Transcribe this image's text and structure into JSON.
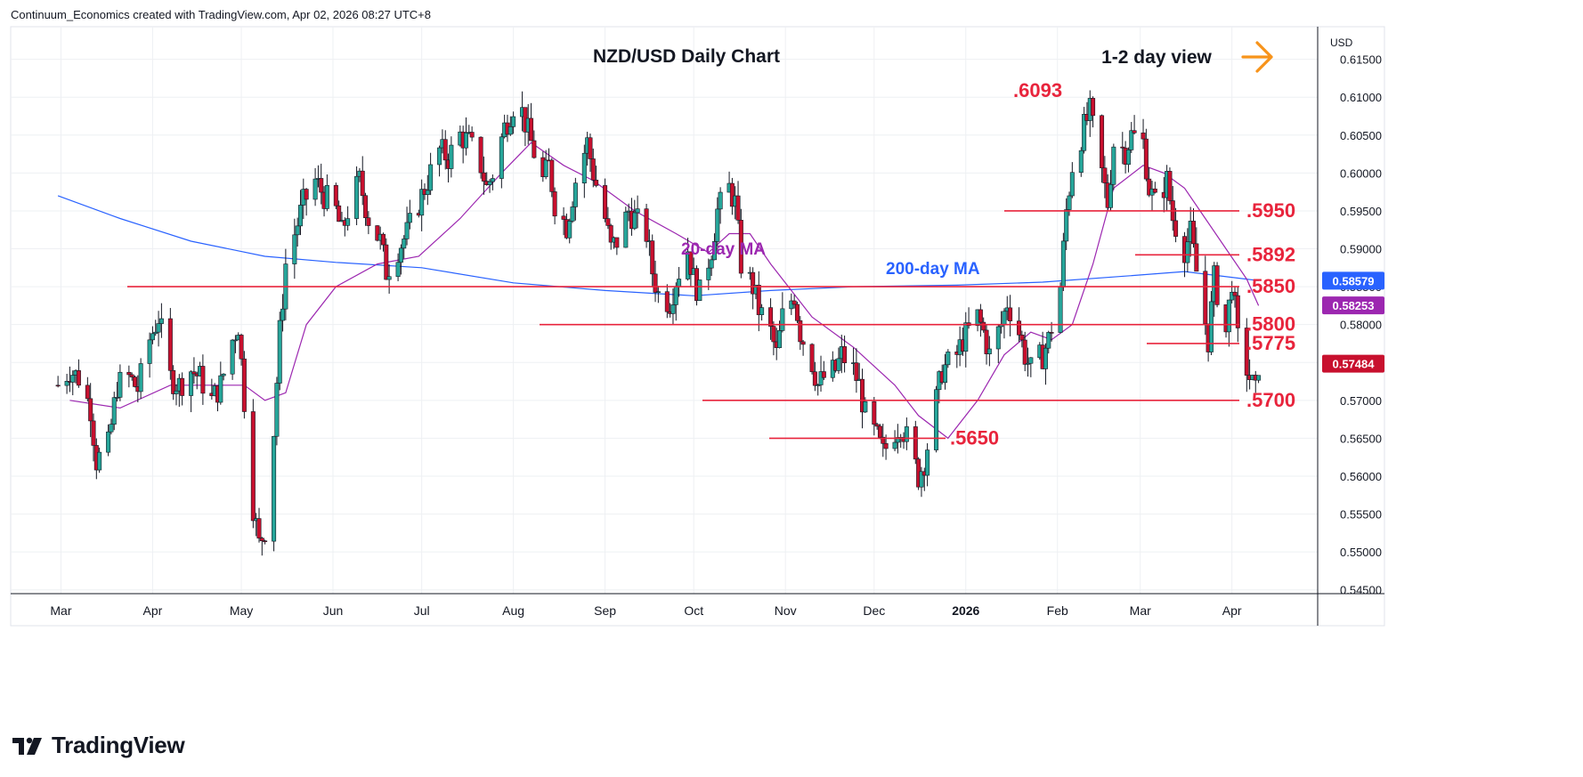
{
  "header": {
    "credit": "Continuum_Economics created with TradingView.com, Apr 02, 2026 08:27 UTC+8"
  },
  "brand": {
    "name": "TradingView"
  },
  "colors": {
    "up": "#26a69a",
    "down": "#c8102e",
    "ma20": "#9c27b0",
    "ma200": "#2962ff",
    "level": "#e8243c",
    "arrow": "#f7931a",
    "grid": "#eef0f3",
    "axis_text": "#131722"
  },
  "chart_data": {
    "type": "candlestick",
    "title": "NZD/USD Daily Chart",
    "view_label": "1-2 day view",
    "view_icon": "arrow-right-icon",
    "currency": "USD",
    "ylim": [
      0.5445,
      0.6193
    ],
    "y_ticks": [
      "0.61500",
      "0.61000",
      "0.60500",
      "0.60000",
      "0.59500",
      "0.59000",
      "0.58500",
      "0.58000",
      "0.57500",
      "0.57000",
      "0.56500",
      "0.56000",
      "0.55500",
      "0.55000",
      "0.54500"
    ],
    "x_ticks": [
      "Mar",
      "Apr",
      "May",
      "Jun",
      "Jul",
      "Aug",
      "Sep",
      "Oct",
      "Nov",
      "Dec",
      "2026",
      "Feb",
      "Mar",
      "Apr"
    ],
    "price_badges": [
      {
        "label": "0.58579",
        "value": 0.58579,
        "color": "#2962ff"
      },
      {
        "label": "0.58253",
        "value": 0.58253,
        "color": "#9c27b0"
      },
      {
        "label": "0.57484",
        "value": 0.57484,
        "color": "#c8102e"
      }
    ],
    "ma_labels": {
      "ma20": "20-day MA",
      "ma200": "200-day MA"
    },
    "levels": [
      {
        "label": ".6093",
        "value": 0.6093,
        "line": false
      },
      {
        "label": ".5950",
        "value": 0.595,
        "line": true
      },
      {
        "label": ".5892",
        "value": 0.5892,
        "line": true
      },
      {
        "label": ".5850",
        "value": 0.585,
        "line": true
      },
      {
        "label": ".5800",
        "value": 0.58,
        "line": true
      },
      {
        "label": ".5775",
        "value": 0.5775,
        "line": true
      },
      {
        "label": ".5700",
        "value": 0.57,
        "line": true
      },
      {
        "label": ".5650",
        "value": 0.565,
        "line": true
      }
    ],
    "close_path": [
      [
        "2025-02-28",
        0.572
      ],
      [
        "2025-03-04",
        0.574
      ],
      [
        "2025-03-07",
        0.573
      ],
      [
        "2025-03-11",
        0.569
      ],
      [
        "2025-03-13",
        0.562
      ],
      [
        "2025-03-17",
        0.564
      ],
      [
        "2025-03-20",
        0.572
      ],
      [
        "2025-03-24",
        0.573
      ],
      [
        "2025-03-27",
        0.5715
      ],
      [
        "2025-03-31",
        0.578
      ],
      [
        "2025-04-03",
        0.581
      ],
      [
        "2025-04-07",
        0.573
      ],
      [
        "2025-04-10",
        0.572
      ],
      [
        "2025-04-14",
        0.574
      ],
      [
        "2025-04-17",
        0.573
      ],
      [
        "2025-04-21",
        0.57
      ],
      [
        "2025-04-24",
        0.572
      ],
      [
        "2025-04-28",
        0.578
      ],
      [
        "2025-04-30",
        0.58
      ],
      [
        "2025-05-02",
        0.57
      ],
      [
        "2025-05-05",
        0.556
      ],
      [
        "2025-05-07",
        0.551
      ],
      [
        "2025-05-09",
        0.553
      ],
      [
        "2025-05-12",
        0.566
      ],
      [
        "2025-05-14",
        0.579
      ],
      [
        "2025-05-16",
        0.588
      ],
      [
        "2025-05-19",
        0.592
      ],
      [
        "2025-05-22",
        0.596
      ],
      [
        "2025-05-26",
        0.599
      ],
      [
        "2025-05-29",
        0.597
      ],
      [
        "2025-06-02",
        0.595
      ],
      [
        "2025-06-04",
        0.592
      ],
      [
        "2025-06-06",
        0.595
      ],
      [
        "2025-06-10",
        0.599
      ],
      [
        "2025-06-13",
        0.594
      ],
      [
        "2025-06-17",
        0.591
      ],
      [
        "2025-06-19",
        0.587
      ],
      [
        "2025-06-23",
        0.59
      ],
      [
        "2025-06-26",
        0.592
      ],
      [
        "2025-06-30",
        0.596
      ],
      [
        "2025-07-03",
        0.599
      ],
      [
        "2025-07-07",
        0.603
      ],
      [
        "2025-07-10",
        0.602
      ],
      [
        "2025-07-14",
        0.605
      ],
      [
        "2025-07-17",
        0.604
      ],
      [
        "2025-07-21",
        0.601
      ],
      [
        "2025-07-23",
        0.598
      ],
      [
        "2025-07-25",
        0.6
      ],
      [
        "2025-07-29",
        0.606
      ],
      [
        "2025-08-01",
        0.609
      ],
      [
        "2025-08-04",
        0.608
      ],
      [
        "2025-08-07",
        0.604
      ],
      [
        "2025-08-11",
        0.599
      ],
      [
        "2025-08-13",
        0.601
      ],
      [
        "2025-08-15",
        0.596
      ],
      [
        "2025-08-19",
        0.593
      ],
      [
        "2025-08-22",
        0.599
      ],
      [
        "2025-08-26",
        0.604
      ],
      [
        "2025-08-28",
        0.6
      ],
      [
        "2025-09-01",
        0.594
      ],
      [
        "2025-09-03",
        0.59
      ],
      [
        "2025-09-05",
        0.591
      ],
      [
        "2025-09-09",
        0.595
      ],
      [
        "2025-09-11",
        0.594
      ],
      [
        "2025-09-15",
        0.592
      ],
      [
        "2025-09-17",
        0.587
      ],
      [
        "2025-09-19",
        0.584
      ],
      [
        "2025-09-23",
        0.583
      ],
      [
        "2025-09-25",
        0.586
      ],
      [
        "2025-09-29",
        0.59
      ],
      [
        "2025-10-01",
        0.586
      ],
      [
        "2025-10-03",
        0.584
      ],
      [
        "2025-10-07",
        0.59
      ],
      [
        "2025-10-09",
        0.595
      ],
      [
        "2025-10-13",
        0.598
      ],
      [
        "2025-10-15",
        0.596
      ],
      [
        "2025-10-17",
        0.588
      ],
      [
        "2025-10-21",
        0.585
      ],
      [
        "2025-10-23",
        0.582
      ],
      [
        "2025-10-27",
        0.579
      ],
      [
        "2025-10-29",
        0.576
      ],
      [
        "2025-10-31",
        0.581
      ],
      [
        "2025-11-04",
        0.584
      ],
      [
        "2025-11-06",
        0.579
      ],
      [
        "2025-11-10",
        0.575
      ],
      [
        "2025-11-12",
        0.572
      ],
      [
        "2025-11-14",
        0.573
      ],
      [
        "2025-11-18",
        0.574
      ],
      [
        "2025-11-20",
        0.576
      ],
      [
        "2025-11-24",
        0.574
      ],
      [
        "2025-11-26",
        0.572
      ],
      [
        "2025-11-28",
        0.568
      ],
      [
        "2025-12-02",
        0.565
      ],
      [
        "2025-12-04",
        0.563
      ],
      [
        "2025-12-08",
        0.566
      ],
      [
        "2025-12-10",
        0.567
      ],
      [
        "2025-12-12",
        0.565
      ],
      [
        "2025-12-16",
        0.56
      ],
      [
        "2025-12-18",
        0.562
      ],
      [
        "2025-12-22",
        0.57
      ],
      [
        "2025-12-24",
        0.574
      ],
      [
        "2025-12-29",
        0.576
      ],
      [
        "2025-12-31",
        0.578
      ],
      [
        "2026-01-05",
        0.581
      ],
      [
        "2026-01-07",
        0.579
      ],
      [
        "2026-01-09",
        0.576
      ],
      [
        "2026-01-13",
        0.58
      ],
      [
        "2026-01-15",
        0.583
      ],
      [
        "2026-01-19",
        0.579
      ],
      [
        "2026-01-21",
        0.576
      ],
      [
        "2026-01-23",
        0.574
      ],
      [
        "2026-01-27",
        0.576
      ],
      [
        "2026-01-29",
        0.578
      ],
      [
        "2026-02-02",
        0.585
      ],
      [
        "2026-02-04",
        0.595
      ],
      [
        "2026-02-06",
        0.601
      ],
      [
        "2026-02-10",
        0.606
      ],
      [
        "2026-02-12",
        0.608
      ],
      [
        "2026-02-16",
        0.6
      ],
      [
        "2026-02-18",
        0.596
      ],
      [
        "2026-02-20",
        0.604
      ],
      [
        "2026-02-24",
        0.603
      ],
      [
        "2026-02-26",
        0.605
      ],
      [
        "2026-03-02",
        0.604
      ],
      [
        "2026-03-04",
        0.598
      ],
      [
        "2026-03-06",
        0.596
      ],
      [
        "2026-03-10",
        0.599
      ],
      [
        "2026-03-12",
        0.594
      ],
      [
        "2026-03-16",
        0.59
      ],
      [
        "2026-03-18",
        0.592
      ],
      [
        "2026-03-20",
        0.587
      ],
      [
        "2026-03-24",
        0.578
      ],
      [
        "2026-03-26",
        0.586
      ],
      [
        "2026-03-30",
        0.579
      ],
      [
        "2026-04-01",
        0.586
      ],
      [
        "2026-04-03",
        0.578
      ],
      [
        "2026-04-07",
        0.573
      ],
      [
        "2026-04-09",
        0.571
      ],
      [
        "2026-04-10",
        0.5748
      ]
    ],
    "ma20_path": [
      [
        "2025-03-04",
        0.57
      ],
      [
        "2025-03-21",
        0.569
      ],
      [
        "2025-04-07",
        0.572
      ],
      [
        "2025-05-02",
        0.572
      ],
      [
        "2025-05-09",
        0.57
      ],
      [
        "2025-05-16",
        0.571
      ],
      [
        "2025-05-23",
        0.58
      ],
      [
        "2025-06-02",
        0.585
      ],
      [
        "2025-06-16",
        0.588
      ],
      [
        "2025-06-30",
        0.589
      ],
      [
        "2025-07-14",
        0.594
      ],
      [
        "2025-07-28",
        0.6
      ],
      [
        "2025-08-07",
        0.604
      ],
      [
        "2025-08-18",
        0.601
      ],
      [
        "2025-08-28",
        0.599
      ],
      [
        "2025-09-11",
        0.595
      ],
      [
        "2025-09-25",
        0.592
      ],
      [
        "2025-10-06",
        0.5895
      ],
      [
        "2025-10-13",
        0.592
      ],
      [
        "2025-10-20",
        0.592
      ],
      [
        "2025-10-27",
        0.588
      ],
      [
        "2025-11-10",
        0.581
      ],
      [
        "2025-11-24",
        0.577
      ],
      [
        "2025-12-08",
        0.572
      ],
      [
        "2025-12-16",
        0.568
      ],
      [
        "2025-12-26",
        0.565
      ],
      [
        "2026-01-05",
        0.57
      ],
      [
        "2026-01-14",
        0.576
      ],
      [
        "2026-01-23",
        0.579
      ],
      [
        "2026-01-30",
        0.578
      ],
      [
        "2026-02-06",
        0.58
      ],
      [
        "2026-02-13",
        0.588
      ],
      [
        "2026-02-20",
        0.598
      ],
      [
        "2026-03-02",
        0.601
      ],
      [
        "2026-03-09",
        0.6
      ],
      [
        "2026-03-16",
        0.598
      ],
      [
        "2026-03-23",
        0.594
      ],
      [
        "2026-03-30",
        0.59
      ],
      [
        "2026-04-06",
        0.586
      ],
      [
        "2026-04-10",
        0.5825
      ]
    ],
    "ma200_path": [
      [
        "2025-02-28",
        0.597
      ],
      [
        "2025-03-21",
        0.594
      ],
      [
        "2025-04-14",
        0.591
      ],
      [
        "2025-05-09",
        0.589
      ],
      [
        "2025-06-02",
        0.5882
      ],
      [
        "2025-07-01",
        0.5875
      ],
      [
        "2025-08-01",
        0.5855
      ],
      [
        "2025-09-01",
        0.5845
      ],
      [
        "2025-10-01",
        0.5838
      ],
      [
        "2025-10-27",
        0.5845
      ],
      [
        "2025-11-24",
        0.585
      ],
      [
        "2025-12-29",
        0.5852
      ],
      [
        "2026-01-27",
        0.5856
      ],
      [
        "2026-02-24",
        0.5864
      ],
      [
        "2026-03-16",
        0.587
      ],
      [
        "2026-04-10",
        0.5858
      ]
    ]
  }
}
